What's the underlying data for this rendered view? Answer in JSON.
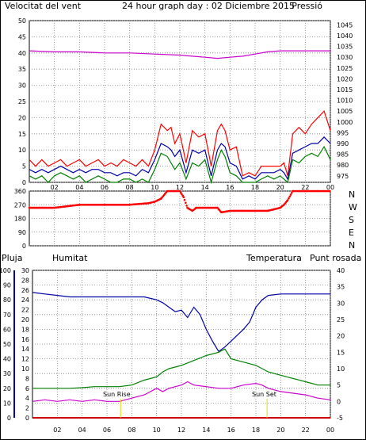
{
  "header": {
    "wind_label": "Velocitat del vent",
    "title": "24 hour graph day : 02 Diciembre 2015",
    "pressure_label": "Pressió"
  },
  "colors": {
    "wind": "#ff0000",
    "gust_avg": "#0000aa",
    "wind_green": "#008000",
    "pressure": "#cc00cc",
    "rain": "#cc0000",
    "humidity": "#0000aa",
    "temperature": "#008000",
    "dewpoint": "#cc00cc",
    "sun": "#dddd00",
    "grid": "#808080"
  },
  "panels_labels": {
    "compass": [
      "N",
      "W",
      "S",
      "E",
      "N"
    ],
    "rain_label": "Pluja",
    "humidity_label": "Humitat",
    "temperature_label": "Temperatura",
    "dewpoint_label": "Punt rosada",
    "sunrise_label": "Sun Rise",
    "sunset_label": "Sun Set"
  },
  "chart_data": [
    {
      "type": "line",
      "name_ref": "wind-pressure",
      "x_ticks": [
        "02",
        "04",
        "06",
        "08",
        "10",
        "12",
        "14",
        "16",
        "18",
        "20",
        "22",
        "00"
      ],
      "x_hours": [
        0,
        24
      ],
      "y_left_ticks": [
        0,
        5,
        10,
        15,
        20,
        25,
        30,
        35,
        40,
        45,
        50
      ],
      "y_left_range": [
        0,
        50
      ],
      "y_right_ticks": [
        975,
        980,
        985,
        990,
        995,
        1000,
        1005,
        1010,
        1015,
        1020,
        1025,
        1030,
        1035,
        1040,
        1045
      ],
      "y_right_range": [
        972,
        1047
      ],
      "series": [
        {
          "key": "wind_max",
          "axis": "left",
          "x": [
            0,
            0.5,
            1,
            1.5,
            2,
            2.5,
            3,
            3.5,
            4,
            4.5,
            5,
            5.5,
            6,
            6.5,
            7,
            7.5,
            8,
            8.5,
            9,
            9.5,
            10,
            10.5,
            11,
            11.3,
            11.6,
            12,
            12.5,
            13,
            13.5,
            14,
            14.5,
            15,
            15.3,
            15.6,
            16,
            16.5,
            17,
            17.5,
            18,
            18.5,
            19,
            19.5,
            20,
            20.3,
            20.6,
            21,
            21.5,
            22,
            22.5,
            23,
            23.5,
            24
          ],
          "values": [
            7,
            5,
            7,
            5,
            6,
            7,
            5,
            6,
            7,
            5,
            6,
            7,
            5,
            6,
            5,
            7,
            6,
            5,
            7,
            5,
            10,
            18,
            16,
            17,
            12,
            15,
            6,
            16,
            14,
            15,
            5,
            16,
            18,
            16,
            10,
            11,
            2,
            3,
            2,
            5,
            5,
            5,
            5,
            6,
            2,
            15,
            17,
            15,
            18,
            20,
            22,
            16
          ]
        },
        {
          "key": "wind_avg",
          "axis": "left",
          "x": [
            0,
            0.5,
            1,
            1.5,
            2,
            2.5,
            3,
            3.5,
            4,
            4.5,
            5,
            5.5,
            6,
            6.5,
            7,
            7.5,
            8,
            8.5,
            9,
            9.5,
            10,
            10.5,
            11,
            11.3,
            11.6,
            12,
            12.5,
            13,
            13.5,
            14,
            14.5,
            15,
            15.3,
            15.6,
            16,
            16.5,
            17,
            17.5,
            18,
            18.5,
            19,
            19.5,
            20,
            20.3,
            20.6,
            21,
            21.5,
            22,
            22.5,
            23,
            23.5,
            24
          ],
          "values": [
            4,
            3,
            4,
            3,
            4,
            5,
            4,
            3,
            4,
            3,
            4,
            4,
            3,
            3,
            2,
            3,
            3,
            2,
            4,
            3,
            7,
            12,
            11,
            10,
            8,
            10,
            3,
            10,
            9,
            10,
            2,
            10,
            12,
            11,
            6,
            5,
            1,
            2,
            1,
            3,
            3,
            3,
            4,
            3,
            1,
            9,
            10,
            11,
            12,
            12,
            14,
            12
          ]
        },
        {
          "key": "wind_min",
          "axis": "left",
          "x": [
            0,
            0.5,
            1,
            1.5,
            2,
            2.5,
            3,
            3.5,
            4,
            4.5,
            5,
            5.5,
            6,
            6.5,
            7,
            7.5,
            8,
            8.5,
            9,
            9.5,
            10,
            10.5,
            11,
            11.3,
            11.6,
            12,
            12.5,
            13,
            13.5,
            14,
            14.5,
            15,
            15.3,
            15.6,
            16,
            16.5,
            17,
            17.5,
            18,
            18.5,
            19,
            19.5,
            20,
            20.3,
            20.6,
            21,
            21.5,
            22,
            22.5,
            23,
            23.5,
            24
          ],
          "values": [
            2,
            1,
            2,
            0,
            2,
            3,
            2,
            1,
            2,
            0,
            1,
            2,
            1,
            0,
            0,
            1,
            1,
            0,
            1,
            0,
            4,
            9,
            8,
            6,
            4,
            6,
            1,
            6,
            5,
            7,
            0,
            7,
            10,
            8,
            3,
            2,
            0,
            0,
            0,
            1,
            2,
            1,
            2,
            1,
            0,
            7,
            6,
            8,
            9,
            8,
            11,
            7
          ]
        },
        {
          "key": "pressure",
          "axis": "right",
          "x": [
            0,
            2,
            4,
            6,
            8,
            10,
            12,
            13,
            14,
            15,
            16,
            17,
            18,
            19,
            20,
            22,
            24
          ],
          "values": [
            1033,
            1032.5,
            1032.5,
            1032,
            1032,
            1031.5,
            1031,
            1030.5,
            1030,
            1029.5,
            1030,
            1030.5,
            1031.5,
            1032.5,
            1033,
            1033,
            1033
          ]
        }
      ]
    },
    {
      "type": "scatter",
      "name_ref": "wind-direction",
      "y_ticks": [
        0,
        90,
        180,
        270,
        360
      ],
      "y_range": [
        0,
        360
      ],
      "series": [
        {
          "key": "direction",
          "x": [
            0,
            2,
            4,
            6,
            8,
            9.5,
            10,
            10.5,
            11,
            11.5,
            12,
            12.3,
            12.6,
            13,
            13.3,
            13.6,
            14,
            15,
            15.3,
            16,
            17,
            18,
            19,
            20,
            20.3,
            20.6,
            21,
            21.5,
            22,
            23,
            24
          ],
          "values": [
            250,
            250,
            270,
            270,
            270,
            280,
            290,
            310,
            360,
            360,
            360,
            320,
            250,
            230,
            250,
            250,
            250,
            250,
            220,
            230,
            230,
            230,
            230,
            250,
            270,
            300,
            360,
            360,
            360,
            360,
            360
          ]
        }
      ]
    },
    {
      "type": "line",
      "name_ref": "humidity-temperature",
      "y_far_left_ticks": [
        0,
        10,
        20,
        30,
        40,
        50,
        60,
        70,
        80,
        90,
        100
      ],
      "y_far_left_range": [
        0,
        100
      ],
      "y_left_ticks": [
        0,
        2,
        4,
        6,
        8,
        10,
        12,
        14,
        16,
        18,
        20,
        22,
        24,
        26,
        28,
        30
      ],
      "y_left_range": [
        0,
        30
      ],
      "y_right_ticks": [
        -5,
        0,
        5,
        10,
        15,
        20,
        25,
        30,
        35,
        40
      ],
      "y_right_range": [
        -5,
        40
      ],
      "series": [
        {
          "key": "humidity",
          "axis": "far_left",
          "x": [
            0,
            1,
            2,
            3,
            4,
            5,
            6,
            7,
            8,
            9,
            10,
            10.5,
            11,
            11.5,
            12,
            12.5,
            13,
            13.5,
            14,
            14.5,
            15,
            15.5,
            16,
            16.5,
            17,
            17.5,
            18,
            18.5,
            19,
            20,
            21,
            22,
            23,
            24
          ],
          "values": [
            85,
            84,
            83,
            82,
            82,
            82,
            82,
            82,
            82,
            82,
            80,
            78,
            75,
            72,
            73,
            68,
            75,
            70,
            60,
            52,
            45,
            48,
            52,
            56,
            60,
            65,
            75,
            80,
            83,
            84,
            84,
            84,
            84,
            84
          ]
        },
        {
          "key": "temperature",
          "axis": "right",
          "x": [
            0,
            1,
            2,
            3,
            4,
            5,
            6,
            7,
            8,
            9,
            10,
            10.5,
            11,
            12,
            13,
            14,
            15,
            15.5,
            16,
            17,
            18,
            19,
            20,
            21,
            22,
            23,
            24
          ],
          "values": [
            4,
            4,
            4,
            4,
            4.2,
            4.5,
            4.5,
            4.5,
            5,
            6.5,
            7.5,
            9,
            10,
            11,
            12.5,
            14,
            15,
            16,
            13,
            12,
            11,
            9,
            8,
            7,
            6,
            5,
            5
          ]
        },
        {
          "key": "dewpoint",
          "axis": "right",
          "x": [
            0,
            1,
            2,
            3,
            4,
            5,
            6,
            7,
            8,
            9,
            10,
            10.5,
            11,
            12,
            12.5,
            13,
            14,
            15,
            16,
            17,
            18,
            18.5,
            19,
            20,
            21,
            22,
            23,
            24
          ],
          "values": [
            0,
            0.5,
            0,
            0.5,
            0,
            0.5,
            0,
            0,
            1,
            2,
            4,
            3,
            4,
            5,
            6,
            5,
            4.5,
            4,
            4,
            5,
            5.5,
            5,
            4,
            3,
            2.5,
            2,
            1,
            0.5
          ]
        },
        {
          "key": "rain",
          "axis": "left",
          "x": [
            0,
            24
          ],
          "values": [
            0,
            0
          ]
        }
      ]
    }
  ]
}
